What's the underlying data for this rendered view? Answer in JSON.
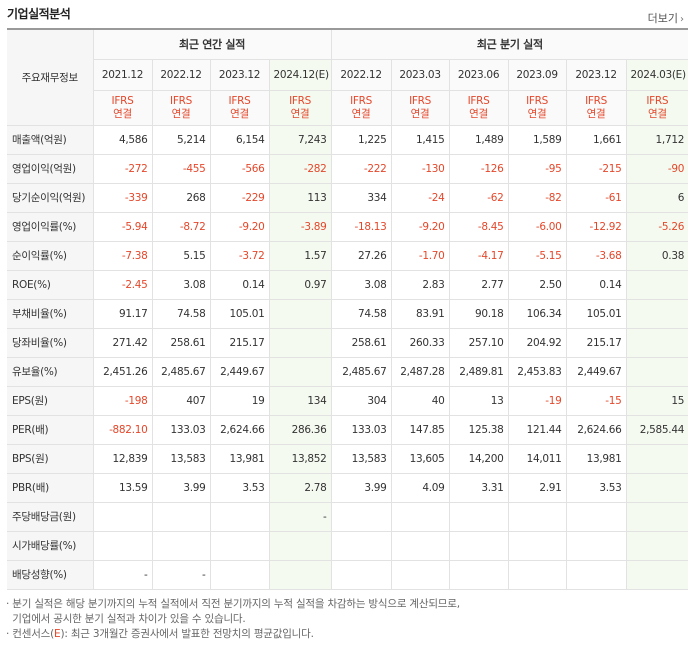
{
  "title": "기업실적분석",
  "more_label": "더보기",
  "header": {
    "row_label": "주요재무정보",
    "annual_group": "최근 연간 실적",
    "quarter_group": "최근 분기 실적",
    "periods": [
      "2021.12",
      "2022.12",
      "2023.12",
      "2024.12(E)",
      "2022.12",
      "2023.03",
      "2023.06",
      "2023.09",
      "2023.12",
      "2024.03(E)"
    ],
    "ifrs_top": "IFRS",
    "ifrs_bottom": "연결"
  },
  "rows": [
    {
      "label": "매출액(억원)",
      "values": [
        "4,586",
        "5,214",
        "6,154",
        "7,243",
        "1,225",
        "1,415",
        "1,489",
        "1,589",
        "1,661",
        "1,712"
      ]
    },
    {
      "label": "영업이익(억원)",
      "values": [
        "-272",
        "-455",
        "-566",
        "-282",
        "-222",
        "-130",
        "-126",
        "-95",
        "-215",
        "-90"
      ]
    },
    {
      "label": "당기순이익(억원)",
      "values": [
        "-339",
        "268",
        "-229",
        "113",
        "334",
        "-24",
        "-62",
        "-82",
        "-61",
        "6"
      ]
    },
    {
      "label": "영업이익률(%)",
      "values": [
        "-5.94",
        "-8.72",
        "-9.20",
        "-3.89",
        "-18.13",
        "-9.20",
        "-8.45",
        "-6.00",
        "-12.92",
        "-5.26"
      ]
    },
    {
      "label": "순이익률(%)",
      "values": [
        "-7.38",
        "5.15",
        "-3.72",
        "1.57",
        "27.26",
        "-1.70",
        "-4.17",
        "-5.15",
        "-3.68",
        "0.38"
      ]
    },
    {
      "label": "ROE(%)",
      "values": [
        "-2.45",
        "3.08",
        "0.14",
        "0.97",
        "3.08",
        "2.83",
        "2.77",
        "2.50",
        "0.14",
        ""
      ]
    },
    {
      "label": "부채비율(%)",
      "values": [
        "91.17",
        "74.58",
        "105.01",
        "",
        "74.58",
        "83.91",
        "90.18",
        "106.34",
        "105.01",
        ""
      ]
    },
    {
      "label": "당좌비율(%)",
      "values": [
        "271.42",
        "258.61",
        "215.17",
        "",
        "258.61",
        "260.33",
        "257.10",
        "204.92",
        "215.17",
        ""
      ]
    },
    {
      "label": "유보율(%)",
      "values": [
        "2,451.26",
        "2,485.67",
        "2,449.67",
        "",
        "2,485.67",
        "2,487.28",
        "2,489.81",
        "2,453.83",
        "2,449.67",
        ""
      ]
    },
    {
      "label": "EPS(원)",
      "values": [
        "-198",
        "407",
        "19",
        "134",
        "304",
        "40",
        "13",
        "-19",
        "-15",
        "15"
      ]
    },
    {
      "label": "PER(배)",
      "values": [
        "-882.10",
        "133.03",
        "2,624.66",
        "286.36",
        "133.03",
        "147.85",
        "125.38",
        "121.44",
        "2,624.66",
        "2,585.44"
      ]
    },
    {
      "label": "BPS(원)",
      "values": [
        "12,839",
        "13,583",
        "13,981",
        "13,852",
        "13,583",
        "13,605",
        "14,200",
        "14,011",
        "13,981",
        ""
      ]
    },
    {
      "label": "PBR(배)",
      "values": [
        "13.59",
        "3.99",
        "3.53",
        "2.78",
        "3.99",
        "4.09",
        "3.31",
        "2.91",
        "3.53",
        ""
      ]
    },
    {
      "label": "주당배당금(원)",
      "values": [
        "",
        "",
        "",
        "-",
        "",
        "",
        "",
        "",
        "",
        ""
      ]
    },
    {
      "label": "시가배당률(%)",
      "values": [
        "",
        "",
        "",
        "",
        "",
        "",
        "",
        "",
        "",
        ""
      ]
    },
    {
      "label": "배당성향(%)",
      "values": [
        "-",
        "-",
        "",
        "",
        "",
        "",
        "",
        "",
        "",
        ""
      ]
    }
  ],
  "notes": {
    "line1": "분기 실적은 해당 분기까지의 누적 실적에서 직전 분기까지의 누적 실적을 차감하는 방식으로 계산되므로,",
    "line2": "기업에서 공시한 분기 실적과 차이가 있을 수 있습니다.",
    "line3_prefix": "컨센서스(",
    "line3_e": "E",
    "line3_suffix": "): 최근 3개월간 증권사에서 발표한 전망치의 평균값입니다."
  },
  "colors": {
    "negative": "#e4472a",
    "estimate_bg": "#f4faf0",
    "header_bg": "#fafafa"
  }
}
